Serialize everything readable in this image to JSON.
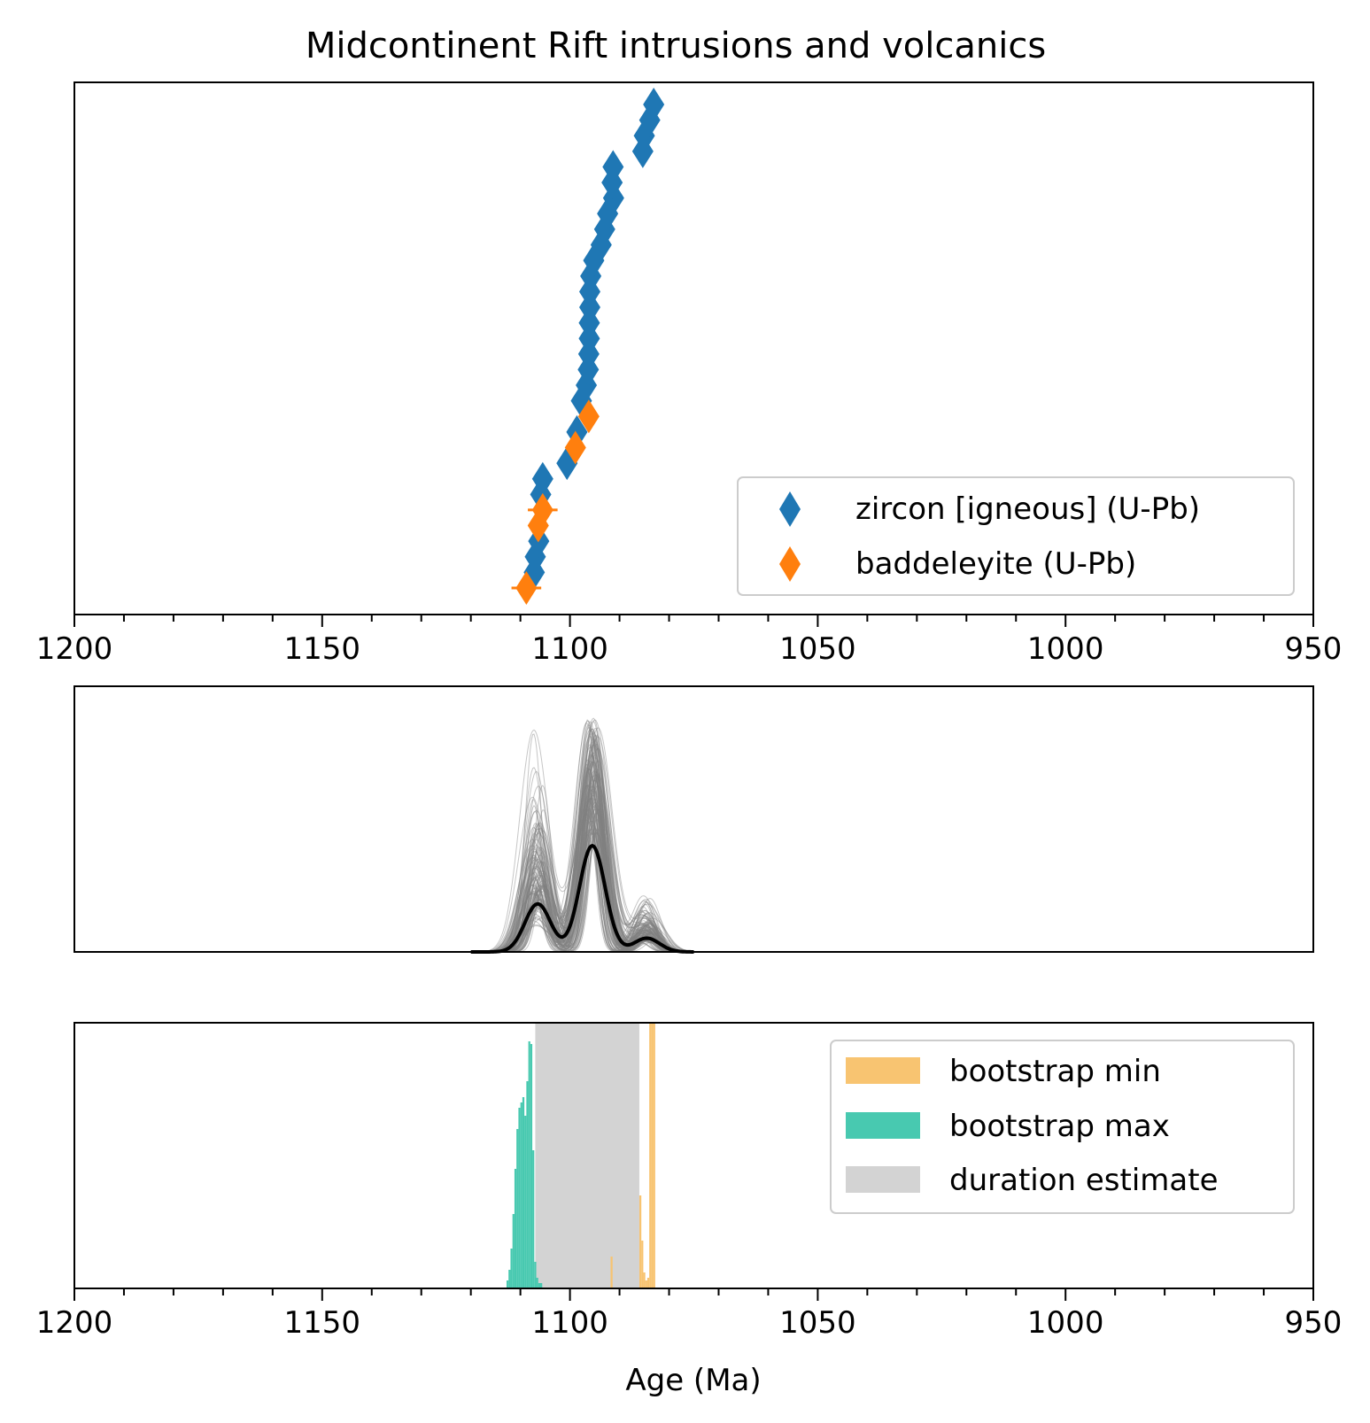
{
  "chart_data": [
    {
      "type": "scatter",
      "title": "Midcontinent Rift intrusions and volcanics",
      "xlabel": "",
      "ylabel": "",
      "xlim": [
        1200,
        950
      ],
      "x_ticks": [
        1200,
        1150,
        1100,
        1050,
        1000,
        950
      ],
      "x_tick_labels": [
        "1200",
        "1150",
        "1100",
        "1050",
        "1000",
        "950"
      ],
      "x_minor_step": 10,
      "y_ticks_shown": false,
      "grid": false,
      "legend": {
        "placement": "lower-right",
        "entries": [
          "zircon [igneous] (U-Pb)",
          "baddeleyite (U-Pb)"
        ]
      },
      "series": [
        {
          "name": "zircon [igneous] (U-Pb)",
          "color": "#1f77b4",
          "marker": "diamond",
          "points": [
            {
              "age": 1107.2,
              "err": 1.0
            },
            {
              "age": 1107.0,
              "err": 1.0
            },
            {
              "age": 1106.3,
              "err": 1.0
            },
            {
              "age": 1105.9,
              "err": 1.0
            },
            {
              "age": 1105.5,
              "err": 1.0
            },
            {
              "age": 1100.6,
              "err": 1.0
            },
            {
              "age": 1098.6,
              "err": 1.0
            },
            {
              "age": 1097.7,
              "err": 1.0
            },
            {
              "age": 1096.7,
              "err": 1.0
            },
            {
              "age": 1096.3,
              "err": 1.0
            },
            {
              "age": 1096.2,
              "err": 1.0
            },
            {
              "age": 1096.1,
              "err": 1.0
            },
            {
              "age": 1096.1,
              "err": 1.0
            },
            {
              "age": 1096.0,
              "err": 1.0
            },
            {
              "age": 1096.0,
              "err": 1.0
            },
            {
              "age": 1095.8,
              "err": 1.0
            },
            {
              "age": 1095.2,
              "err": 1.0
            },
            {
              "age": 1093.7,
              "err": 1.0
            },
            {
              "age": 1093.0,
              "err": 1.0
            },
            {
              "age": 1092.4,
              "err": 1.0
            },
            {
              "age": 1091.2,
              "err": 1.0
            },
            {
              "age": 1091.5,
              "err": 1.0
            },
            {
              "age": 1091.3,
              "err": 1.0
            },
            {
              "age": 1085.3,
              "err": 1.0
            },
            {
              "age": 1085.0,
              "err": 1.0
            },
            {
              "age": 1083.9,
              "err": 1.0
            },
            {
              "age": 1083.1,
              "err": 1.0
            }
          ],
          "ranks": [
            2,
            3,
            4,
            7,
            8,
            9,
            11,
            13,
            14,
            15,
            16,
            17,
            18,
            19,
            20,
            21,
            22,
            23,
            24,
            25,
            26,
            27,
            28,
            29,
            30,
            31,
            32
          ]
        },
        {
          "name": "baddeleyite (U-Pb)",
          "color": "#ff7f0e",
          "marker": "diamond",
          "points": [
            {
              "age": 1108.8,
              "err": 3.0
            },
            {
              "age": 1106.4,
              "err": 1.0
            },
            {
              "age": 1105.5,
              "err": 3.0
            },
            {
              "age": 1098.9,
              "err": 1.0
            },
            {
              "age": 1096.2,
              "err": 1.0
            }
          ],
          "ranks": [
            1,
            5,
            6,
            10,
            12
          ]
        }
      ]
    },
    {
      "type": "line",
      "title": "",
      "xlabel": "",
      "ylabel": "",
      "xlim": [
        1200,
        950
      ],
      "x_ticks_shown": false,
      "y_ticks_shown": false,
      "grid": false,
      "ylim": [
        0,
        1.0
      ],
      "description_of_curves": "kernel density estimate of ages (black) with bootstrapped resamples (gray)",
      "kde_components": [
        {
          "center": 1106.5,
          "width": 2.6,
          "weight": 0.28
        },
        {
          "center": 1095.5,
          "width": 2.6,
          "weight": 0.62
        },
        {
          "center": 1084.5,
          "width": 2.6,
          "weight": 0.08
        }
      ],
      "kde_peak_relative_height": 0.4,
      "bootstrap_curves_count": 120,
      "bootstrap_color": "#808080",
      "kde_color": "#000000",
      "x_support": [
        1120,
        1075
      ]
    },
    {
      "type": "bar",
      "title": "",
      "xlabel": "Age (Ma)",
      "ylabel": "",
      "xlim": [
        1200,
        950
      ],
      "x_ticks": [
        1200,
        1150,
        1100,
        1050,
        1000,
        950
      ],
      "x_tick_labels": [
        "1200",
        "1150",
        "1100",
        "1050",
        "1000",
        "950"
      ],
      "x_minor_step": 10,
      "y_ticks_shown": false,
      "grid": false,
      "ylim": [
        0,
        1.0
      ],
      "legend": {
        "placement": "top-right",
        "entries": [
          "bootstrap min",
          "bootstrap max",
          "duration estimate"
        ]
      },
      "duration_estimate": {
        "name": "duration estimate",
        "from": 1107.0,
        "to": 1086.0,
        "color": "#d3d3d3"
      },
      "series": [
        {
          "name": "bootstrap max",
          "color": "#48c9b0",
          "bin_width": 0.4,
          "bins": [
            {
              "x": 1112.6,
              "v": 0.03
            },
            {
              "x": 1112.2,
              "v": 0.07
            },
            {
              "x": 1111.8,
              "v": 0.15
            },
            {
              "x": 1111.4,
              "v": 0.28
            },
            {
              "x": 1111.0,
              "v": 0.45
            },
            {
              "x": 1110.6,
              "v": 0.6
            },
            {
              "x": 1110.2,
              "v": 0.68
            },
            {
              "x": 1109.8,
              "v": 0.7
            },
            {
              "x": 1109.4,
              "v": 0.72
            },
            {
              "x": 1109.0,
              "v": 0.65
            },
            {
              "x": 1108.6,
              "v": 0.78
            },
            {
              "x": 1108.2,
              "v": 0.93
            },
            {
              "x": 1107.8,
              "v": 0.92
            },
            {
              "x": 1107.4,
              "v": 0.52
            },
            {
              "x": 1107.0,
              "v": 0.1
            },
            {
              "x": 1106.6,
              "v": 0.04
            },
            {
              "x": 1106.2,
              "v": 0.02
            },
            {
              "x": 1105.8,
              "v": 0.02
            }
          ]
        },
        {
          "name": "bootstrap min",
          "color": "#f8c471",
          "bin_width": 0.4,
          "bins": [
            {
              "x": 1091.6,
              "v": 0.12
            },
            {
              "x": 1085.8,
              "v": 0.35
            },
            {
              "x": 1085.4,
              "v": 0.18
            },
            {
              "x": 1085.0,
              "v": 0.06
            },
            {
              "x": 1084.6,
              "v": 0.03
            },
            {
              "x": 1084.2,
              "v": 0.04
            },
            {
              "x": 1083.8,
              "v": 1.0
            },
            {
              "x": 1083.4,
              "v": 1.0
            },
            {
              "x": 1083.0,
              "v": 1.0
            }
          ]
        }
      ]
    }
  ]
}
